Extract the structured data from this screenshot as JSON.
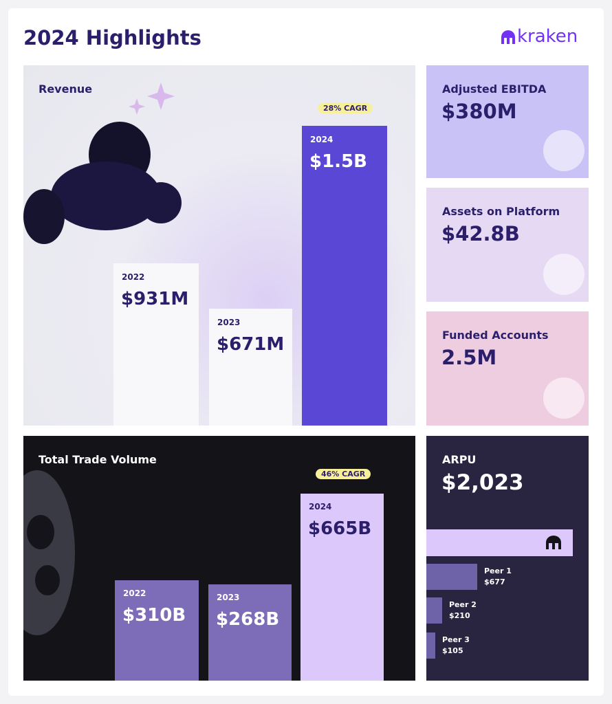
{
  "header": {
    "title": "2024 Highlights",
    "logo": "kraken"
  },
  "revenue": {
    "title": "Revenue",
    "cagr": "28% CAGR",
    "bars": [
      {
        "year": "2022",
        "value": "$931M"
      },
      {
        "year": "2023",
        "value": "$671M"
      },
      {
        "year": "2024",
        "value": "$1.5B"
      }
    ]
  },
  "metrics": [
    {
      "label": "Adjusted EBITDA",
      "value": "$380M"
    },
    {
      "label": "Assets on Platform",
      "value": "$42.8B"
    },
    {
      "label": "Funded Accounts",
      "value": "2.5M"
    }
  ],
  "trade_volume": {
    "title": "Total Trade Volume",
    "cagr": "46% CAGR",
    "bars": [
      {
        "year": "2022",
        "value": "$310B"
      },
      {
        "year": "2023",
        "value": "$268B"
      },
      {
        "year": "2024",
        "value": "$665B"
      }
    ]
  },
  "arpu": {
    "title": "ARPU",
    "value": "$2,023",
    "peers": [
      {
        "name": "Peer 1",
        "value": "$677"
      },
      {
        "name": "Peer 2",
        "value": "$210"
      },
      {
        "name": "Peer 3",
        "value": "$105"
      }
    ]
  }
}
